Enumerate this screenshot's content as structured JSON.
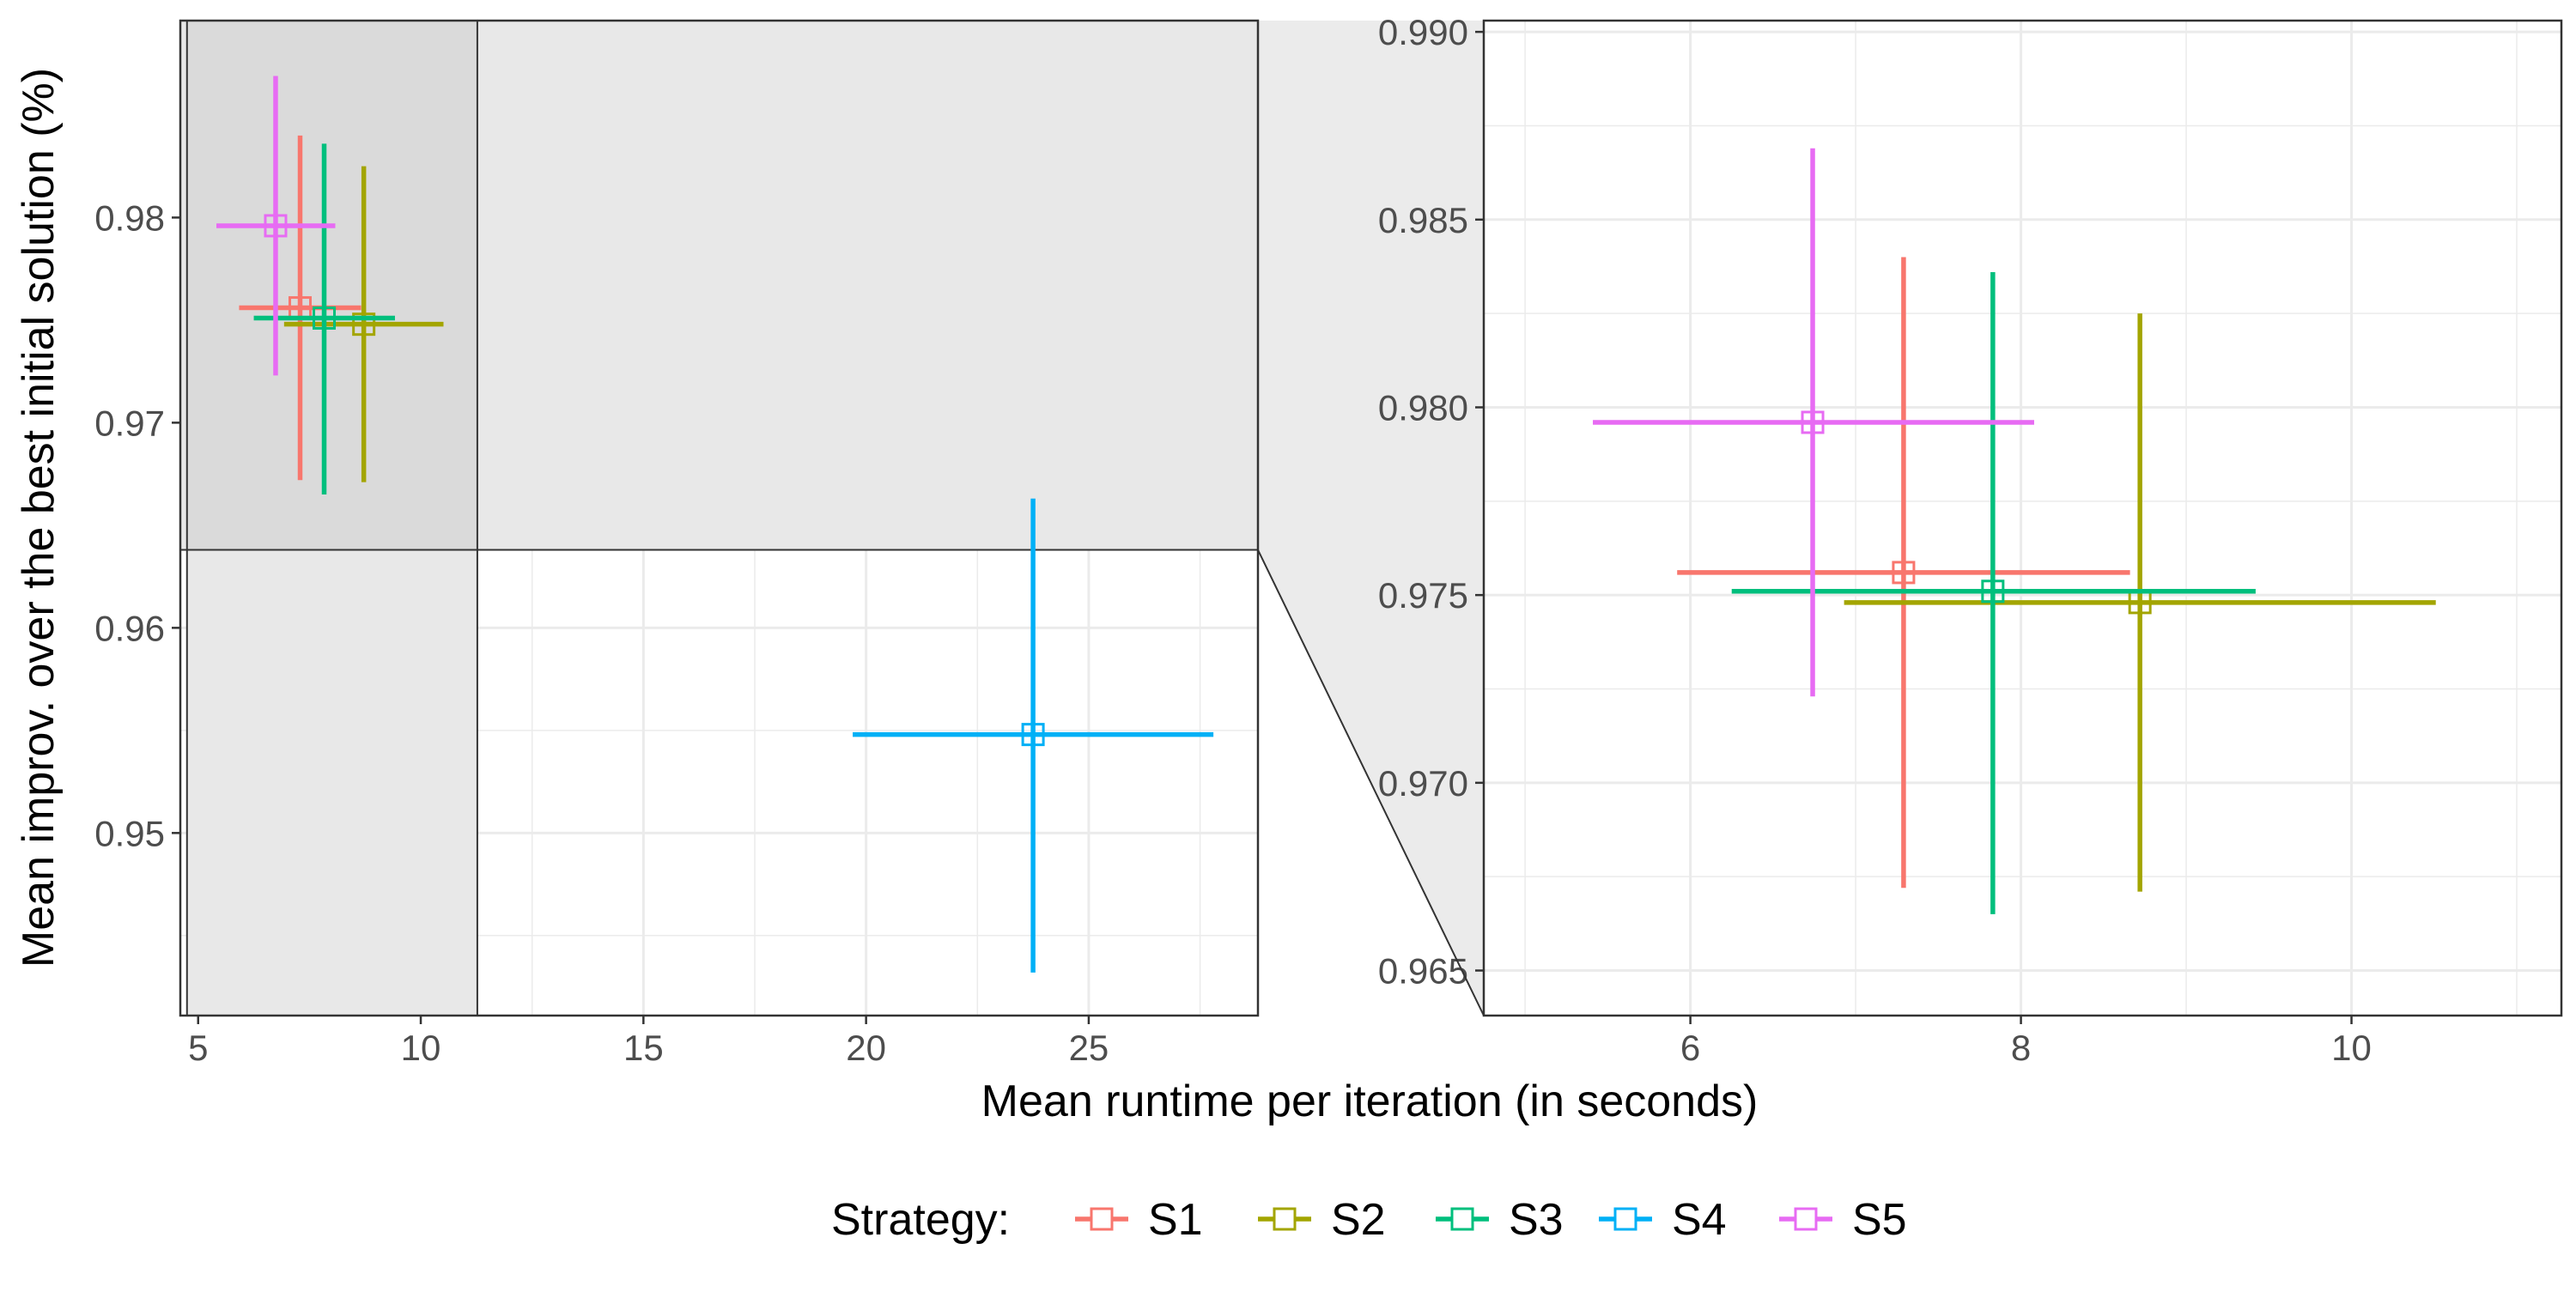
{
  "chart_data": {
    "type": "scatter",
    "xlabel": "Mean runtime per iteration (in seconds)",
    "ylabel": "Mean improv. over the best initial solution (%)",
    "legend": {
      "title": "Strategy:",
      "position": "bottom",
      "items": [
        "S1",
        "S2",
        "S3",
        "S4",
        "S5"
      ]
    },
    "grid": true,
    "series": [
      {
        "name": "S1",
        "color": "#F8766D",
        "x": 7.29,
        "y": 0.9756,
        "x_low": 5.92,
        "x_high": 8.66,
        "y_low": 0.9672,
        "y_high": 0.984
      },
      {
        "name": "S2",
        "color": "#A3A500",
        "x": 8.72,
        "y": 0.9748,
        "x_low": 6.93,
        "x_high": 10.51,
        "y_low": 0.9671,
        "y_high": 0.9825
      },
      {
        "name": "S3",
        "color": "#00BF7D",
        "x": 7.83,
        "y": 0.9751,
        "x_low": 6.25,
        "x_high": 9.42,
        "y_low": 0.9665,
        "y_high": 0.9836
      },
      {
        "name": "S4",
        "color": "#00B0F6",
        "x": 23.75,
        "y": 0.9548,
        "x_low": 19.7,
        "x_high": 27.8,
        "y_low": 0.9432,
        "y_high": 0.9663
      },
      {
        "name": "S5",
        "color": "#E76BF3",
        "x": 6.74,
        "y": 0.9796,
        "x_low": 5.41,
        "x_high": 8.08,
        "y_low": 0.9723,
        "y_high": 0.9869
      }
    ],
    "panels": [
      {
        "id": "main",
        "xlim": [
          4.6,
          28.8
        ],
        "ylim": [
          0.9411,
          0.9896
        ],
        "xticks": [
          5,
          10,
          15,
          20,
          25
        ],
        "xtick_labels": [
          "5",
          "10",
          "15",
          "20",
          "25"
        ],
        "yticks": [
          0.95,
          0.96,
          0.97,
          0.98
        ],
        "ytick_labels": [
          "0.95",
          "0.96",
          "0.97",
          "0.98"
        ]
      },
      {
        "id": "zoom",
        "xlim": [
          4.75,
          11.27
        ],
        "ylim": [
          0.9638,
          0.9903
        ],
        "xticks": [
          6,
          8,
          10
        ],
        "xtick_labels": [
          "6",
          "8",
          "10"
        ],
        "yticks": [
          0.965,
          0.97,
          0.975,
          0.98,
          0.985,
          0.99
        ],
        "ytick_labels": [
          "0.965",
          "0.970",
          "0.975",
          "0.980",
          "0.985",
          "0.990"
        ]
      }
    ],
    "zoom_region": {
      "x": [
        4.75,
        11.27
      ],
      "y": [
        0.9638,
        0.9903
      ]
    }
  },
  "colors": {
    "panel_border": "#333333",
    "grid": "#ebebeb",
    "zoom_fill": "#e8e8e8",
    "zoom_fill_dark": "#d6d6d6"
  }
}
